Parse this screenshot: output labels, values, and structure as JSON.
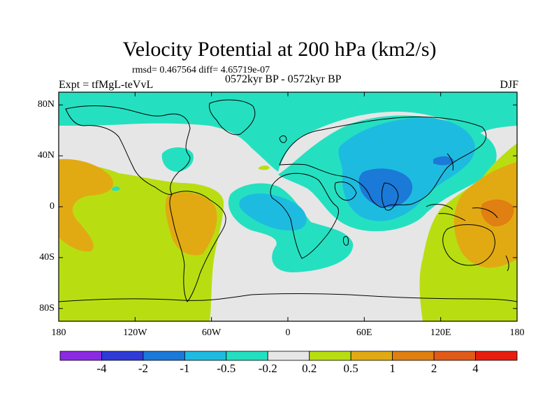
{
  "title": "Velocity Potential at 200 hPa (km2/s)",
  "stats": "rmsd= 0.467564 diff= 4.65719e-07",
  "experiment": "Expt = tfMgL-teVvL",
  "period": "0572kyr BP - 0572kyr BP",
  "season": "DJF",
  "map": {
    "projection": "cylindrical equidistant",
    "lon_range": [
      -180,
      180
    ],
    "lat_range": [
      -90,
      90
    ],
    "x_tick_values": [
      -180,
      -120,
      -60,
      0,
      60,
      120,
      180
    ],
    "x_tick_labels": [
      "180",
      "120W",
      "60W",
      "0",
      "60E",
      "120E",
      "180"
    ],
    "y_tick_values": [
      80,
      40,
      0,
      -40,
      -80
    ],
    "y_tick_labels": [
      "80N",
      "40N",
      "0",
      "40S",
      "80S"
    ]
  },
  "colorbar": {
    "labels": [
      "-4",
      "-2",
      "-1",
      "-0.5",
      "-0.2",
      "0.2",
      "0.5",
      "1",
      "2",
      "4"
    ],
    "colors": [
      "#8a2be2",
      "#2e3bd6",
      "#1b79d8",
      "#1ebbe0",
      "#24e0c0",
      "#e6e6e6",
      "#b8de12",
      "#e2aa12",
      "#e07f12",
      "#e05a18",
      "#e61e10"
    ]
  },
  "colors": {
    "neutral": "#e6e6e6",
    "cyan": "#24e0c0",
    "light_blue": "#1ebbe0",
    "mid_blue": "#1b79d8",
    "lime": "#b8de12",
    "orange": "#e2aa12",
    "dark_orange": "#e07f12"
  }
}
